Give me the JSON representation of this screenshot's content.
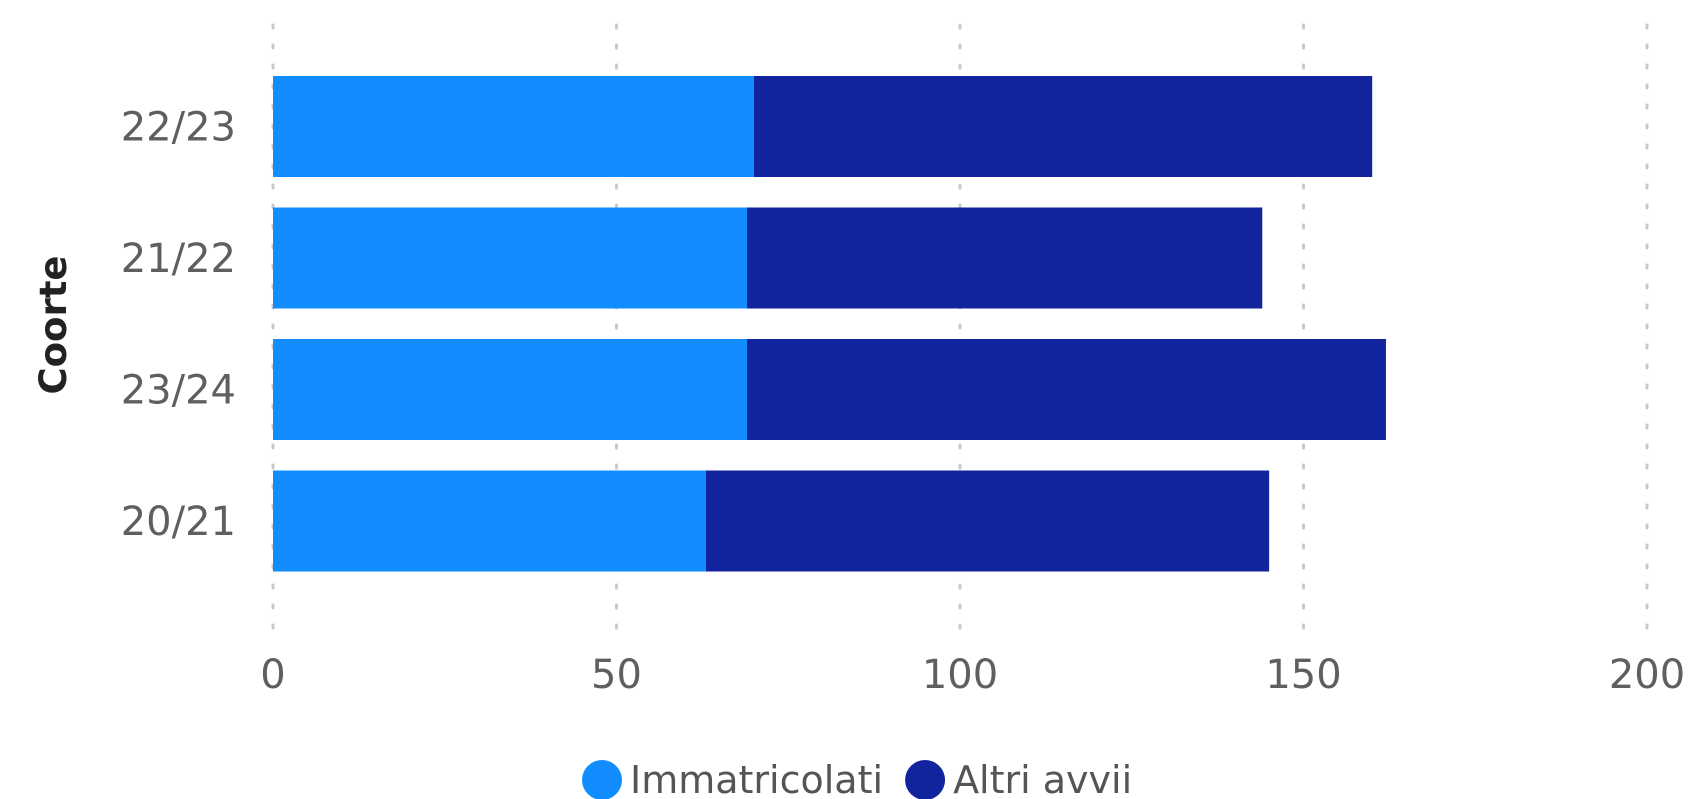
{
  "chart_data": {
    "type": "bar",
    "orientation": "horizontal",
    "stacked": true,
    "title": "",
    "ylabel": "Coorte",
    "xlabel": "",
    "categories": [
      "22/23",
      "21/22",
      "23/24",
      "20/21"
    ],
    "series": [
      {
        "name": "Immatricolati",
        "color": "#118dff",
        "values": [
          70,
          69,
          69,
          63
        ]
      },
      {
        "name": "Altri avvii",
        "color": "#12239e",
        "values": [
          90,
          75,
          93,
          82
        ]
      }
    ],
    "xlim": [
      0,
      200
    ],
    "xticks": [
      "0",
      "50",
      "100",
      "150",
      "200"
    ],
    "grid": true,
    "legend_position": "bottom-center"
  }
}
